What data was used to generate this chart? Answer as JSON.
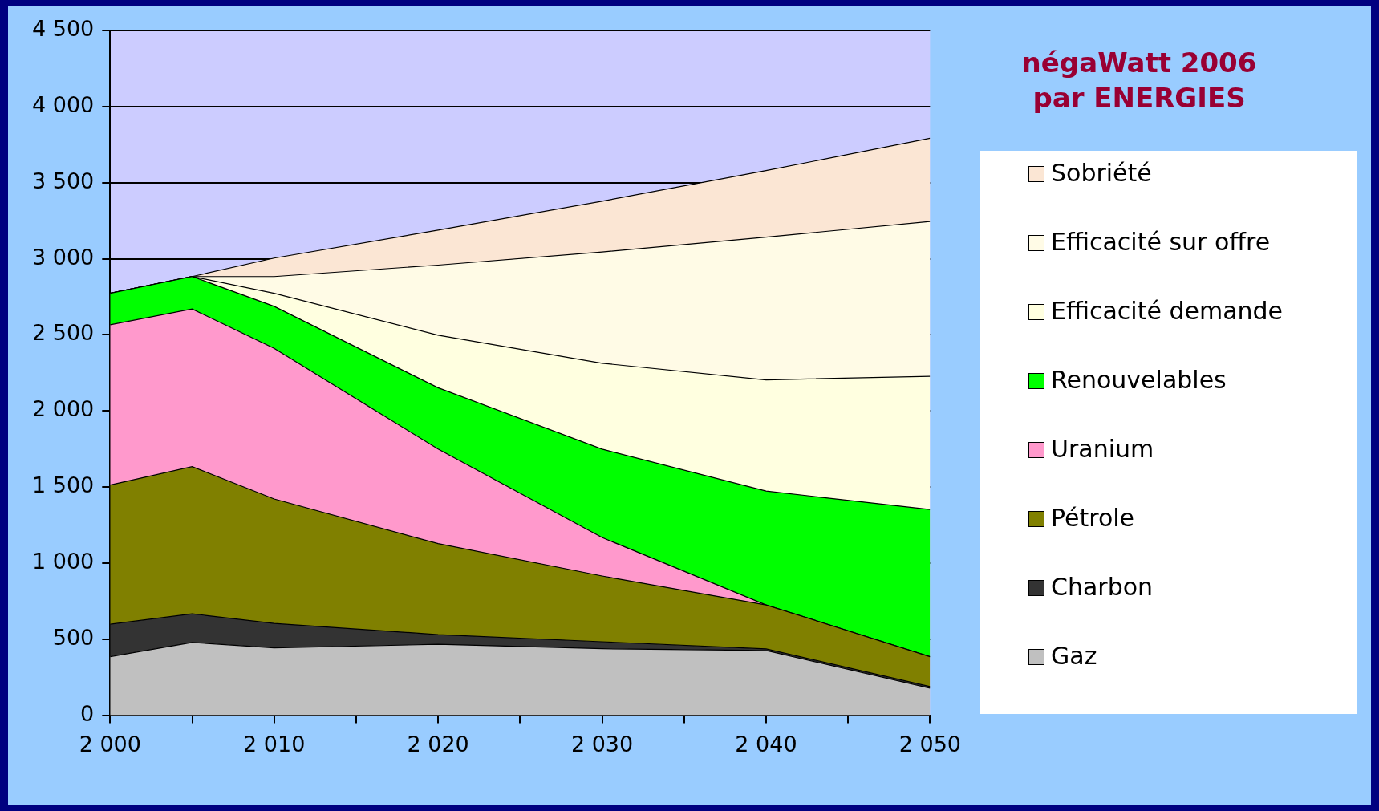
{
  "chart_data": {
    "type": "area",
    "stacked": true,
    "title": "négaWatt 2006\npar ENERGIES",
    "legend": "right",
    "grid": "y",
    "x": [
      2000,
      2005,
      2010,
      2020,
      2030,
      2040,
      2050
    ],
    "xlim": [
      2000,
      2050
    ],
    "xticks": [
      {
        "value": 2000,
        "label": "2 000"
      },
      {
        "value": 2005,
        "label": null
      },
      {
        "value": 2010,
        "label": "2 010"
      },
      {
        "value": 2015,
        "label": null
      },
      {
        "value": 2020,
        "label": "2 020"
      },
      {
        "value": 2025,
        "label": null
      },
      {
        "value": 2030,
        "label": "2 030"
      },
      {
        "value": 2035,
        "label": null
      },
      {
        "value": 2040,
        "label": "2 040"
      },
      {
        "value": 2045,
        "label": null
      },
      {
        "value": 2050,
        "label": "2 050"
      }
    ],
    "ylim": [
      0,
      4500
    ],
    "yticks": [
      0,
      500,
      {
        "value": 1000,
        "label": "1 000"
      },
      {
        "value": 1500,
        "label": "1 500"
      },
      {
        "value": 2000,
        "label": "2 000"
      },
      {
        "value": 2500,
        "label": "2 500"
      },
      {
        "value": 3000,
        "label": "3 000"
      },
      {
        "value": 3500,
        "label": "3 500"
      },
      {
        "value": 4000,
        "label": "4 000"
      },
      {
        "value": 4500,
        "label": "4 500"
      }
    ],
    "series": [
      {
        "name": "Gaz",
        "color": "#c0c0c0",
        "values": [
          385,
          478,
          443,
          466,
          437,
          426,
          178
        ]
      },
      {
        "name": "Charbon",
        "color": "#333333",
        "values": [
          213,
          189,
          161,
          64,
          46,
          10,
          10
        ]
      },
      {
        "name": "Pétrole",
        "color": "#808000",
        "values": [
          915,
          967,
          817,
          598,
          432,
          289,
          197
        ]
      },
      {
        "name": "Uranium",
        "color": "#ff99cc",
        "values": [
          1053,
          1036,
          990,
          621,
          253,
          0,
          0
        ]
      },
      {
        "name": "Renouvelables",
        "color": "#00ff00",
        "values": [
          207,
          213,
          276,
          403,
          581,
          748,
          967
        ]
      },
      {
        "name": "Efficacité demande",
        "color": "#ffffe0",
        "values": [
          0,
          0,
          86,
          345,
          564,
          731,
          875
        ]
      },
      {
        "name": "Efficacité sur offre",
        "color": "#fffbe6",
        "values": [
          0,
          0,
          110,
          461,
          731,
          938,
          1018
        ]
      },
      {
        "name": "Sobriété",
        "color": "#fbe6d4",
        "values": [
          0,
          0,
          121,
          230,
          334,
          437,
          547
        ]
      }
    ]
  }
}
